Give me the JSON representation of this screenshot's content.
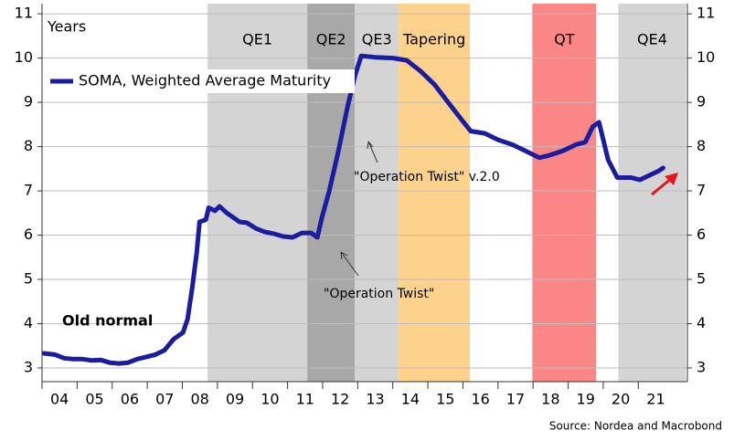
{
  "chart_data": {
    "type": "line",
    "ylabel": "Years",
    "xlim": [
      2004,
      2022.4
    ],
    "ylim": [
      2.69,
      11.23
    ],
    "y2lim": [
      2.69,
      11.23
    ],
    "yticks": [
      3,
      4,
      5,
      6,
      7,
      8,
      9,
      10,
      11
    ],
    "y2ticks": [
      3,
      4,
      5,
      6,
      7,
      8,
      9,
      10,
      11
    ],
    "xticks": [
      {
        "value": 2004,
        "label": "04"
      },
      {
        "value": 2005,
        "label": "05"
      },
      {
        "value": 2006,
        "label": "06"
      },
      {
        "value": 2007,
        "label": "07"
      },
      {
        "value": 2008,
        "label": "08"
      },
      {
        "value": 2009,
        "label": "09"
      },
      {
        "value": 2010,
        "label": "10"
      },
      {
        "value": 2011,
        "label": "11"
      },
      {
        "value": 2012,
        "label": "12"
      },
      {
        "value": 2013,
        "label": "13"
      },
      {
        "value": 2014,
        "label": "14"
      },
      {
        "value": 2015,
        "label": "15"
      },
      {
        "value": 2016,
        "label": "16"
      },
      {
        "value": 2017,
        "label": "17"
      },
      {
        "value": 2018,
        "label": "18"
      },
      {
        "value": 2019,
        "label": "19"
      },
      {
        "value": 2020,
        "label": "20"
      },
      {
        "value": 2021,
        "label": "21"
      }
    ],
    "grid": true,
    "regions": [
      {
        "label": "QE1",
        "start": 2008.72,
        "end": 2011.56,
        "color": "#d4d4d4"
      },
      {
        "label": "QE2",
        "start": 2011.56,
        "end": 2012.92,
        "color": "#a8a8a8"
      },
      {
        "label": "QE3",
        "start": 2012.92,
        "end": 2014.17,
        "color": "#d4d4d4"
      },
      {
        "label": "Tapering",
        "start": 2014.17,
        "end": 2016.2,
        "color": "#fcd28c"
      },
      {
        "label": "QT",
        "start": 2017.98,
        "end": 2019.8,
        "color": "#fa8686"
      },
      {
        "label": "QE4",
        "start": 2020.43,
        "end": 2022.36,
        "color": "#d4d4d4"
      }
    ],
    "annotations": [
      "Old normal",
      "\"Operation Twist\" v.2.0",
      "\"Operation Twist\""
    ],
    "source": "Source: Nordea and Macrobond",
    "series": [
      {
        "name": "SOMA, Weighted Average Maturity",
        "color": "#1c1ca0",
        "x": [
          2004.05,
          2004.37,
          2004.63,
          2004.89,
          2005.15,
          2005.41,
          2005.67,
          2005.93,
          2006.19,
          2006.45,
          2006.71,
          2006.97,
          2007.23,
          2007.49,
          2007.75,
          2008.02,
          2008.15,
          2008.28,
          2008.41,
          2008.49,
          2008.67,
          2008.75,
          2008.93,
          2009.06,
          2009.27,
          2009.45,
          2009.63,
          2009.84,
          2010.1,
          2010.36,
          2010.62,
          2010.88,
          2011.14,
          2011.41,
          2011.67,
          2011.85,
          2011.98,
          2012.19,
          2012.45,
          2012.71,
          2012.92,
          2013.1,
          2013.49,
          2014.01,
          2014.4,
          2014.8,
          2015.19,
          2015.58,
          2015.97,
          2016.22,
          2016.62,
          2017.01,
          2017.4,
          2017.79,
          2018.18,
          2018.45,
          2018.84,
          2019.23,
          2019.49,
          2019.7,
          2019.88,
          2020.14,
          2020.4,
          2020.79,
          2021.05,
          2021.31,
          2021.58,
          2021.71
        ],
        "values": [
          3.33,
          3.3,
          3.22,
          3.2,
          3.2,
          3.17,
          3.18,
          3.12,
          3.1,
          3.12,
          3.2,
          3.25,
          3.3,
          3.4,
          3.65,
          3.8,
          4.1,
          4.8,
          5.6,
          6.3,
          6.35,
          6.62,
          6.55,
          6.65,
          6.5,
          6.4,
          6.3,
          6.28,
          6.15,
          6.07,
          6.03,
          5.97,
          5.95,
          6.05,
          6.05,
          5.95,
          6.4,
          7.0,
          7.9,
          8.9,
          9.6,
          10.05,
          10.02,
          10.0,
          9.95,
          9.7,
          9.4,
          9.0,
          8.6,
          8.35,
          8.3,
          8.15,
          8.05,
          7.9,
          7.75,
          7.8,
          7.9,
          8.05,
          8.1,
          8.45,
          8.55,
          7.7,
          7.3,
          7.3,
          7.25,
          7.35,
          7.45,
          7.52
        ]
      }
    ]
  }
}
